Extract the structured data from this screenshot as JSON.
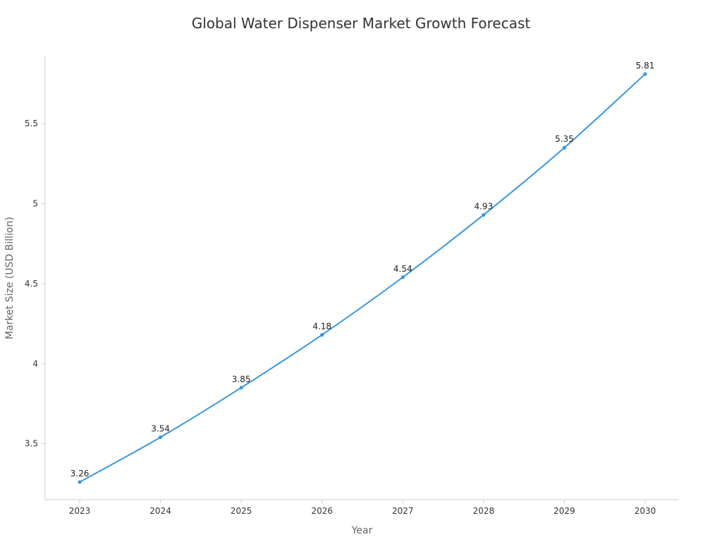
{
  "chart_data": {
    "type": "line",
    "title": "Global Water Dispenser Market Growth Forecast",
    "xlabel": "Year",
    "ylabel": "Market Size (USD Billion)",
    "categories": [
      "2023",
      "2024",
      "2025",
      "2026",
      "2027",
      "2028",
      "2029",
      "2030"
    ],
    "series": [
      {
        "values": [
          3.26,
          3.54,
          3.85,
          4.18,
          4.54,
          4.93,
          5.35,
          5.81
        ],
        "labels": [
          "3.26",
          "3.54",
          "3.85",
          "4.18",
          "4.54",
          "4.93",
          "5.35",
          "5.81"
        ],
        "color": "#3a96dd"
      }
    ],
    "yticks": [
      3.5,
      4,
      4.5,
      5,
      5.5
    ],
    "ytick_labels": [
      "3.5",
      "4",
      "4.5",
      "5",
      "5.5"
    ],
    "ylim": [
      3.15,
      5.92
    ],
    "grid": false,
    "legend": "none"
  }
}
